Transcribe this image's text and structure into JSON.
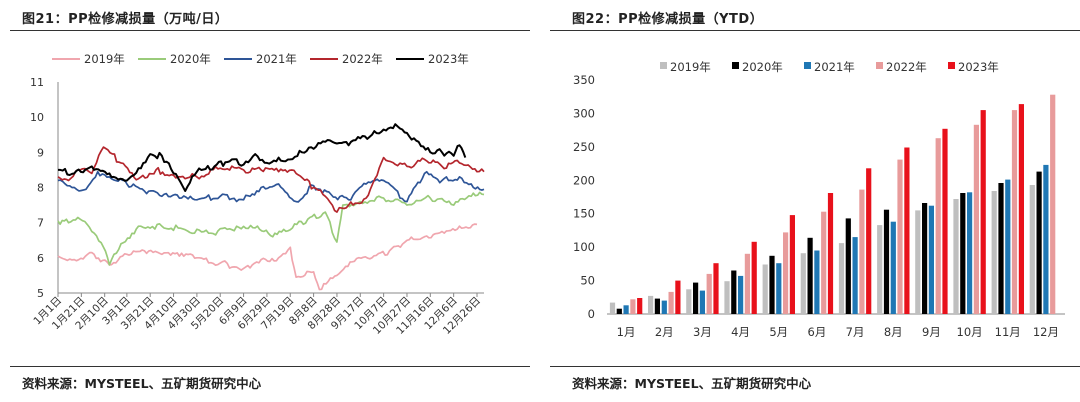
{
  "panels": [
    {
      "title": "图21：PP检修减损量（万吨/日）",
      "source": "资料来源：MYSTEEL、五矿期货研究中心"
    },
    {
      "title": "图22：PP检修减损量（YTD）",
      "source": "资料来源：MYSTEEL、五矿期货研究中心"
    }
  ],
  "chart_data": [
    {
      "type": "line",
      "title": "",
      "xlabel": "",
      "ylabel": "",
      "ylim": [
        5,
        11
      ],
      "yticks": [
        5,
        6,
        7,
        8,
        9,
        10,
        11
      ],
      "x_tick_labels": [
        "1月1日",
        "1月21日",
        "2月10日",
        "3月1日",
        "3月21日",
        "4月10日",
        "4月30日",
        "5月20日",
        "6月9日",
        "6月29日",
        "7月19日",
        "8月8日",
        "8月28日",
        "9月17日",
        "10月7日",
        "10月27日",
        "11月16日",
        "12月6日",
        "12月26日"
      ],
      "x_tick_days": [
        1,
        21,
        41,
        60,
        80,
        100,
        120,
        140,
        160,
        180,
        200,
        220,
        240,
        260,
        280,
        300,
        320,
        340,
        360
      ],
      "x_range": [
        1,
        366
      ],
      "grid": false,
      "legend_position": "top",
      "series": [
        {
          "name": "2019年",
          "color": "#f0a6ae",
          "x": [
            1,
            15,
            30,
            45,
            60,
            75,
            90,
            105,
            120,
            140,
            160,
            175,
            190,
            200,
            205,
            220,
            225,
            240,
            255,
            270,
            285,
            300,
            315,
            330,
            345,
            360
          ],
          "y": [
            6.05,
            5.95,
            6.15,
            5.8,
            6.1,
            6.2,
            6.1,
            6.05,
            6.0,
            5.85,
            5.7,
            5.95,
            6.0,
            6.3,
            5.45,
            5.6,
            5.1,
            5.5,
            5.9,
            6.0,
            6.2,
            6.5,
            6.6,
            6.75,
            6.9,
            6.95
          ]
        },
        {
          "name": "2020年",
          "color": "#9acb7a",
          "x": [
            1,
            10,
            20,
            30,
            40,
            45,
            55,
            70,
            90,
            110,
            130,
            150,
            170,
            185,
            200,
            215,
            230,
            240,
            245,
            260,
            280,
            300,
            320,
            340,
            355,
            366
          ],
          "y": [
            7.05,
            7.0,
            7.1,
            6.75,
            6.3,
            5.8,
            6.4,
            6.9,
            6.9,
            6.8,
            6.7,
            6.8,
            6.85,
            6.6,
            6.8,
            7.1,
            7.3,
            6.45,
            7.5,
            7.6,
            7.7,
            7.5,
            7.7,
            7.5,
            7.75,
            7.8
          ]
        },
        {
          "name": "2021年",
          "color": "#2e5597",
          "x": [
            1,
            15,
            25,
            35,
            45,
            60,
            75,
            90,
            105,
            120,
            140,
            160,
            175,
            190,
            205,
            220,
            235,
            250,
            265,
            280,
            300,
            315,
            330,
            345,
            355,
            366
          ],
          "y": [
            8.2,
            8.0,
            7.95,
            8.45,
            8.3,
            8.1,
            7.9,
            7.75,
            7.7,
            7.65,
            7.75,
            7.65,
            8.0,
            8.1,
            7.6,
            8.05,
            7.8,
            7.65,
            8.1,
            8.2,
            7.6,
            8.4,
            8.2,
            8.3,
            8.1,
            7.95
          ]
        },
        {
          "name": "2022年",
          "color": "#b4262d",
          "x": [
            1,
            10,
            20,
            30,
            40,
            55,
            70,
            85,
            100,
            120,
            140,
            160,
            175,
            190,
            205,
            220,
            230,
            240,
            250,
            265,
            280,
            300,
            315,
            330,
            345,
            360,
            366
          ],
          "y": [
            8.3,
            8.2,
            8.5,
            8.4,
            9.15,
            8.7,
            8.25,
            8.5,
            8.35,
            8.3,
            8.55,
            8.5,
            8.5,
            8.45,
            8.4,
            8.0,
            7.75,
            7.3,
            7.5,
            7.7,
            8.85,
            8.6,
            8.8,
            8.6,
            8.7,
            8.45,
            8.45
          ]
        },
        {
          "name": "2023年",
          "color": "#000000",
          "x": [
            1,
            15,
            30,
            45,
            60,
            70,
            80,
            90,
            100,
            110,
            120,
            135,
            150,
            160,
            170,
            180,
            190,
            200,
            210,
            220,
            230,
            240,
            250,
            260,
            270,
            280,
            290,
            300,
            310,
            320,
            330,
            340,
            345,
            350
          ],
          "y": [
            8.5,
            8.4,
            8.6,
            8.4,
            8.2,
            8.55,
            8.95,
            8.9,
            8.4,
            7.9,
            8.45,
            8.6,
            8.8,
            8.65,
            8.95,
            8.7,
            8.85,
            8.8,
            9.0,
            9.1,
            9.3,
            9.25,
            9.2,
            9.4,
            9.5,
            9.65,
            9.8,
            9.55,
            9.3,
            9.0,
            9.0,
            8.9,
            9.2,
            8.85
          ]
        }
      ]
    },
    {
      "type": "bar",
      "title": "",
      "xlabel": "",
      "ylabel": "",
      "ylim": [
        0,
        350
      ],
      "yticks": [
        0,
        50,
        100,
        150,
        200,
        250,
        300,
        350
      ],
      "grid": false,
      "legend_position": "top",
      "categories": [
        "1月",
        "2月",
        "3月",
        "4月",
        "5月",
        "6月",
        "7月",
        "8月",
        "9月",
        "10月",
        "11月",
        "12月"
      ],
      "series": [
        {
          "name": "2019年",
          "color": "#bfbfbf",
          "values": [
            17,
            27,
            37,
            49,
            74,
            91,
            106,
            133,
            155,
            172,
            184,
            193
          ]
        },
        {
          "name": "2020年",
          "color": "#000000",
          "values": [
            8,
            23,
            47,
            65,
            87,
            114,
            143,
            156,
            166,
            181,
            196,
            213
          ]
        },
        {
          "name": "2021年",
          "color": "#1f77b4",
          "values": [
            13,
            20,
            35,
            57,
            76,
            95,
            115,
            138,
            162,
            182,
            201,
            223
          ]
        },
        {
          "name": "2022年",
          "color": "#e89b9b",
          "values": [
            22,
            33,
            60,
            90,
            122,
            153,
            186,
            231,
            263,
            283,
            305,
            328
          ]
        },
        {
          "name": "2023年",
          "color": "#e8111b",
          "values": [
            24,
            50,
            76,
            108,
            148,
            181,
            218,
            249,
            277,
            305,
            314,
            null
          ]
        }
      ]
    }
  ]
}
